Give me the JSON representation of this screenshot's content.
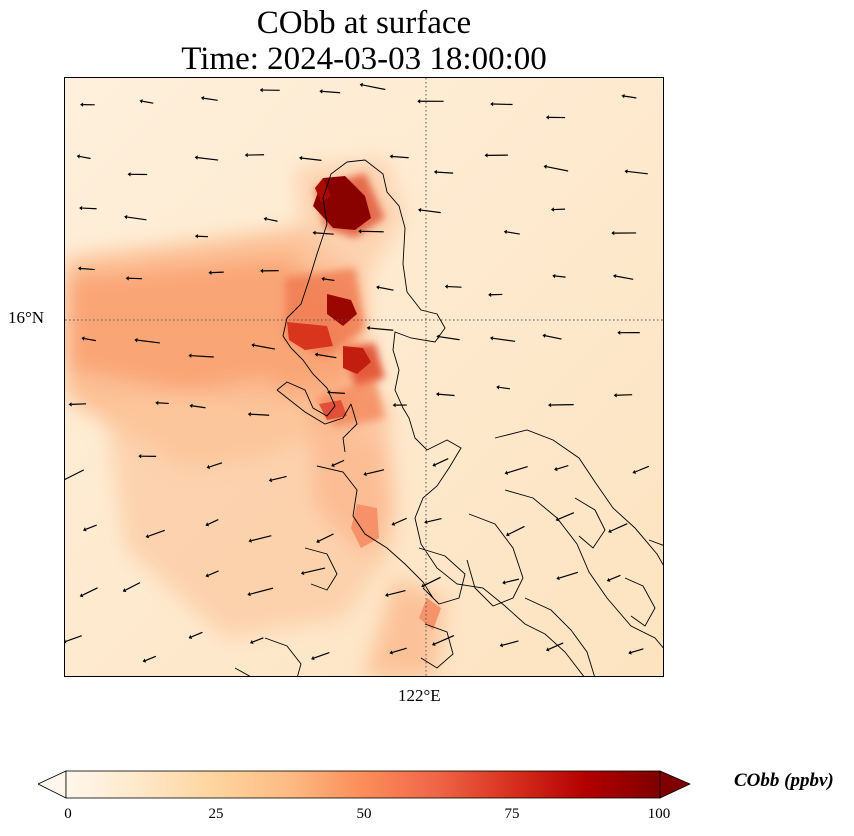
{
  "title": {
    "line1": "CObb at surface",
    "line2": "Time: 2024-03-03 18:00:00"
  },
  "axes": {
    "lat_label": "16°N",
    "lon_label": "122°E"
  },
  "colorbar": {
    "label": "CObb (ppbv)",
    "ticks": [
      "0",
      "25",
      "50",
      "75",
      "100"
    ],
    "min": 0,
    "max": 100,
    "colormap": "OrRd",
    "stops": [
      "#fff7ec",
      "#fee8c8",
      "#fdd49e",
      "#fdbb84",
      "#fc8d59",
      "#ef6548",
      "#d7301f",
      "#b30000",
      "#7f0000"
    ],
    "extend": "both"
  },
  "map": {
    "background_level": 10,
    "plumes": [
      {
        "name": "northern-fire-hotspot",
        "value": 100
      },
      {
        "name": "central-fire-hotspot",
        "value": 90
      },
      {
        "name": "southern-hotspot",
        "value": 75
      },
      {
        "name": "westward-plume",
        "value": 45
      },
      {
        "name": "southwest-plume",
        "value": 30
      }
    ],
    "gridlines": {
      "style": "dotted",
      "color": "#555555"
    },
    "features": [
      "coastline",
      "wind-vectors"
    ]
  }
}
